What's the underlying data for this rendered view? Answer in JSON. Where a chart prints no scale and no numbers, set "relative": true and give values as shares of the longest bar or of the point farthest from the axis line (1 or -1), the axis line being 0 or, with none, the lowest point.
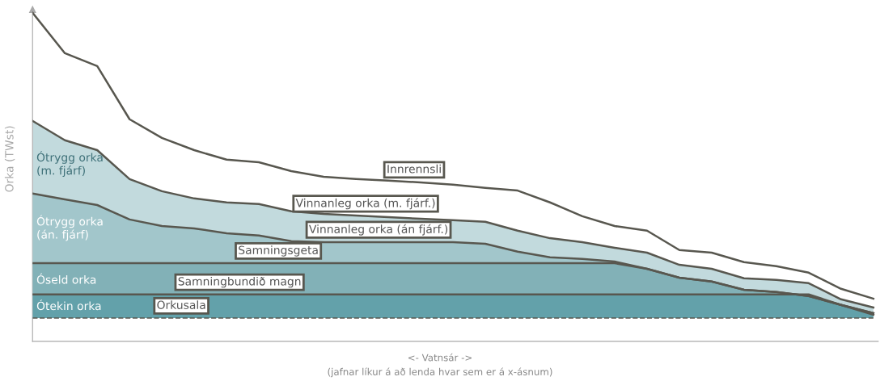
{
  "chart_data": {
    "type": "area",
    "relative": true,
    "ylabel": "Orka (TWst)",
    "xlabel": "<- Vatnsár ->\n(jafnar líkur á að lenda hvar sem er á x-ásnum)",
    "categories": [
      null,
      null,
      null,
      null,
      null,
      null,
      null,
      null,
      null,
      null,
      null,
      null,
      null,
      null,
      null,
      null,
      null,
      null,
      null,
      null,
      null,
      null,
      null,
      null,
      null,
      null,
      null
    ],
    "series": [
      {
        "name": "Innrennsli",
        "type": "line",
        "color": "#58574f",
        "values": [
          1.0,
          0.877,
          0.838,
          0.676,
          0.619,
          0.582,
          0.553,
          0.545,
          0.518,
          0.501,
          0.494,
          0.489,
          0.484,
          0.477,
          0.467,
          0.459,
          0.423,
          0.381,
          0.351,
          0.337,
          0.278,
          0.27,
          0.241,
          0.229,
          0.209,
          0.16,
          0.13
        ]
      },
      {
        "name": "Vinnanleg orka (m. fjárf.)",
        "color": "#c2dadd",
        "values": [
          0.671,
          0.612,
          0.582,
          0.494,
          0.457,
          0.435,
          0.423,
          0.418,
          0.396,
          0.388,
          0.383,
          0.378,
          0.373,
          0.369,
          0.364,
          0.337,
          0.314,
          0.302,
          0.285,
          0.27,
          0.233,
          0.221,
          0.192,
          0.187,
          0.177,
          0.128,
          0.103
        ]
      },
      {
        "name": "Vinnanleg orka (án fjárf.)",
        "color": "#a2c6cb",
        "values": [
          0.45,
          0.432,
          0.415,
          0.371,
          0.351,
          0.344,
          0.329,
          0.322,
          0.305,
          0.302,
          0.302,
          0.302,
          0.302,
          0.302,
          0.297,
          0.273,
          0.256,
          0.251,
          0.243,
          0.221,
          0.194,
          0.182,
          0.157,
          0.15,
          0.138,
          0.111,
          0.086
        ]
      },
      {
        "name": "Samningsgeta",
        "color": "#82b1b7",
        "values": [
          0.238,
          0.238,
          0.238,
          0.238,
          0.238,
          0.238,
          0.238,
          0.238,
          0.238,
          0.238,
          0.238,
          0.238,
          0.238,
          0.238,
          0.238,
          0.238,
          0.238,
          0.238,
          0.238,
          0.221,
          0.194,
          0.182,
          0.157,
          0.15,
          0.138,
          0.111,
          0.086
        ]
      },
      {
        "name": "Samningbundið magn",
        "color": "#63a1aa",
        "values": [
          0.143,
          0.143,
          0.143,
          0.143,
          0.143,
          0.143,
          0.143,
          0.143,
          0.143,
          0.143,
          0.143,
          0.143,
          0.143,
          0.143,
          0.143,
          0.143,
          0.143,
          0.143,
          0.143,
          0.143,
          0.143,
          0.143,
          0.143,
          0.143,
          0.143,
          0.111,
          0.081
        ]
      },
      {
        "name": "Orkusala",
        "type": "line",
        "line_style": "dashed",
        "color": "#58574f",
        "values": [
          0.071,
          0.071,
          0.071,
          0.071,
          0.071,
          0.071,
          0.071,
          0.071,
          0.071,
          0.071,
          0.071,
          0.071,
          0.071,
          0.071,
          0.071,
          0.071,
          0.071,
          0.071,
          0.071,
          0.071,
          0.071,
          0.071,
          0.071,
          0.071,
          0.071,
          0.071,
          0.071
        ]
      }
    ],
    "annotations": [
      "Ótrygg orka\n(m. fjárf)",
      "Ótrygg orka\n(án. fjárf)",
      "Óseld orka",
      "Ótekin orka"
    ]
  }
}
